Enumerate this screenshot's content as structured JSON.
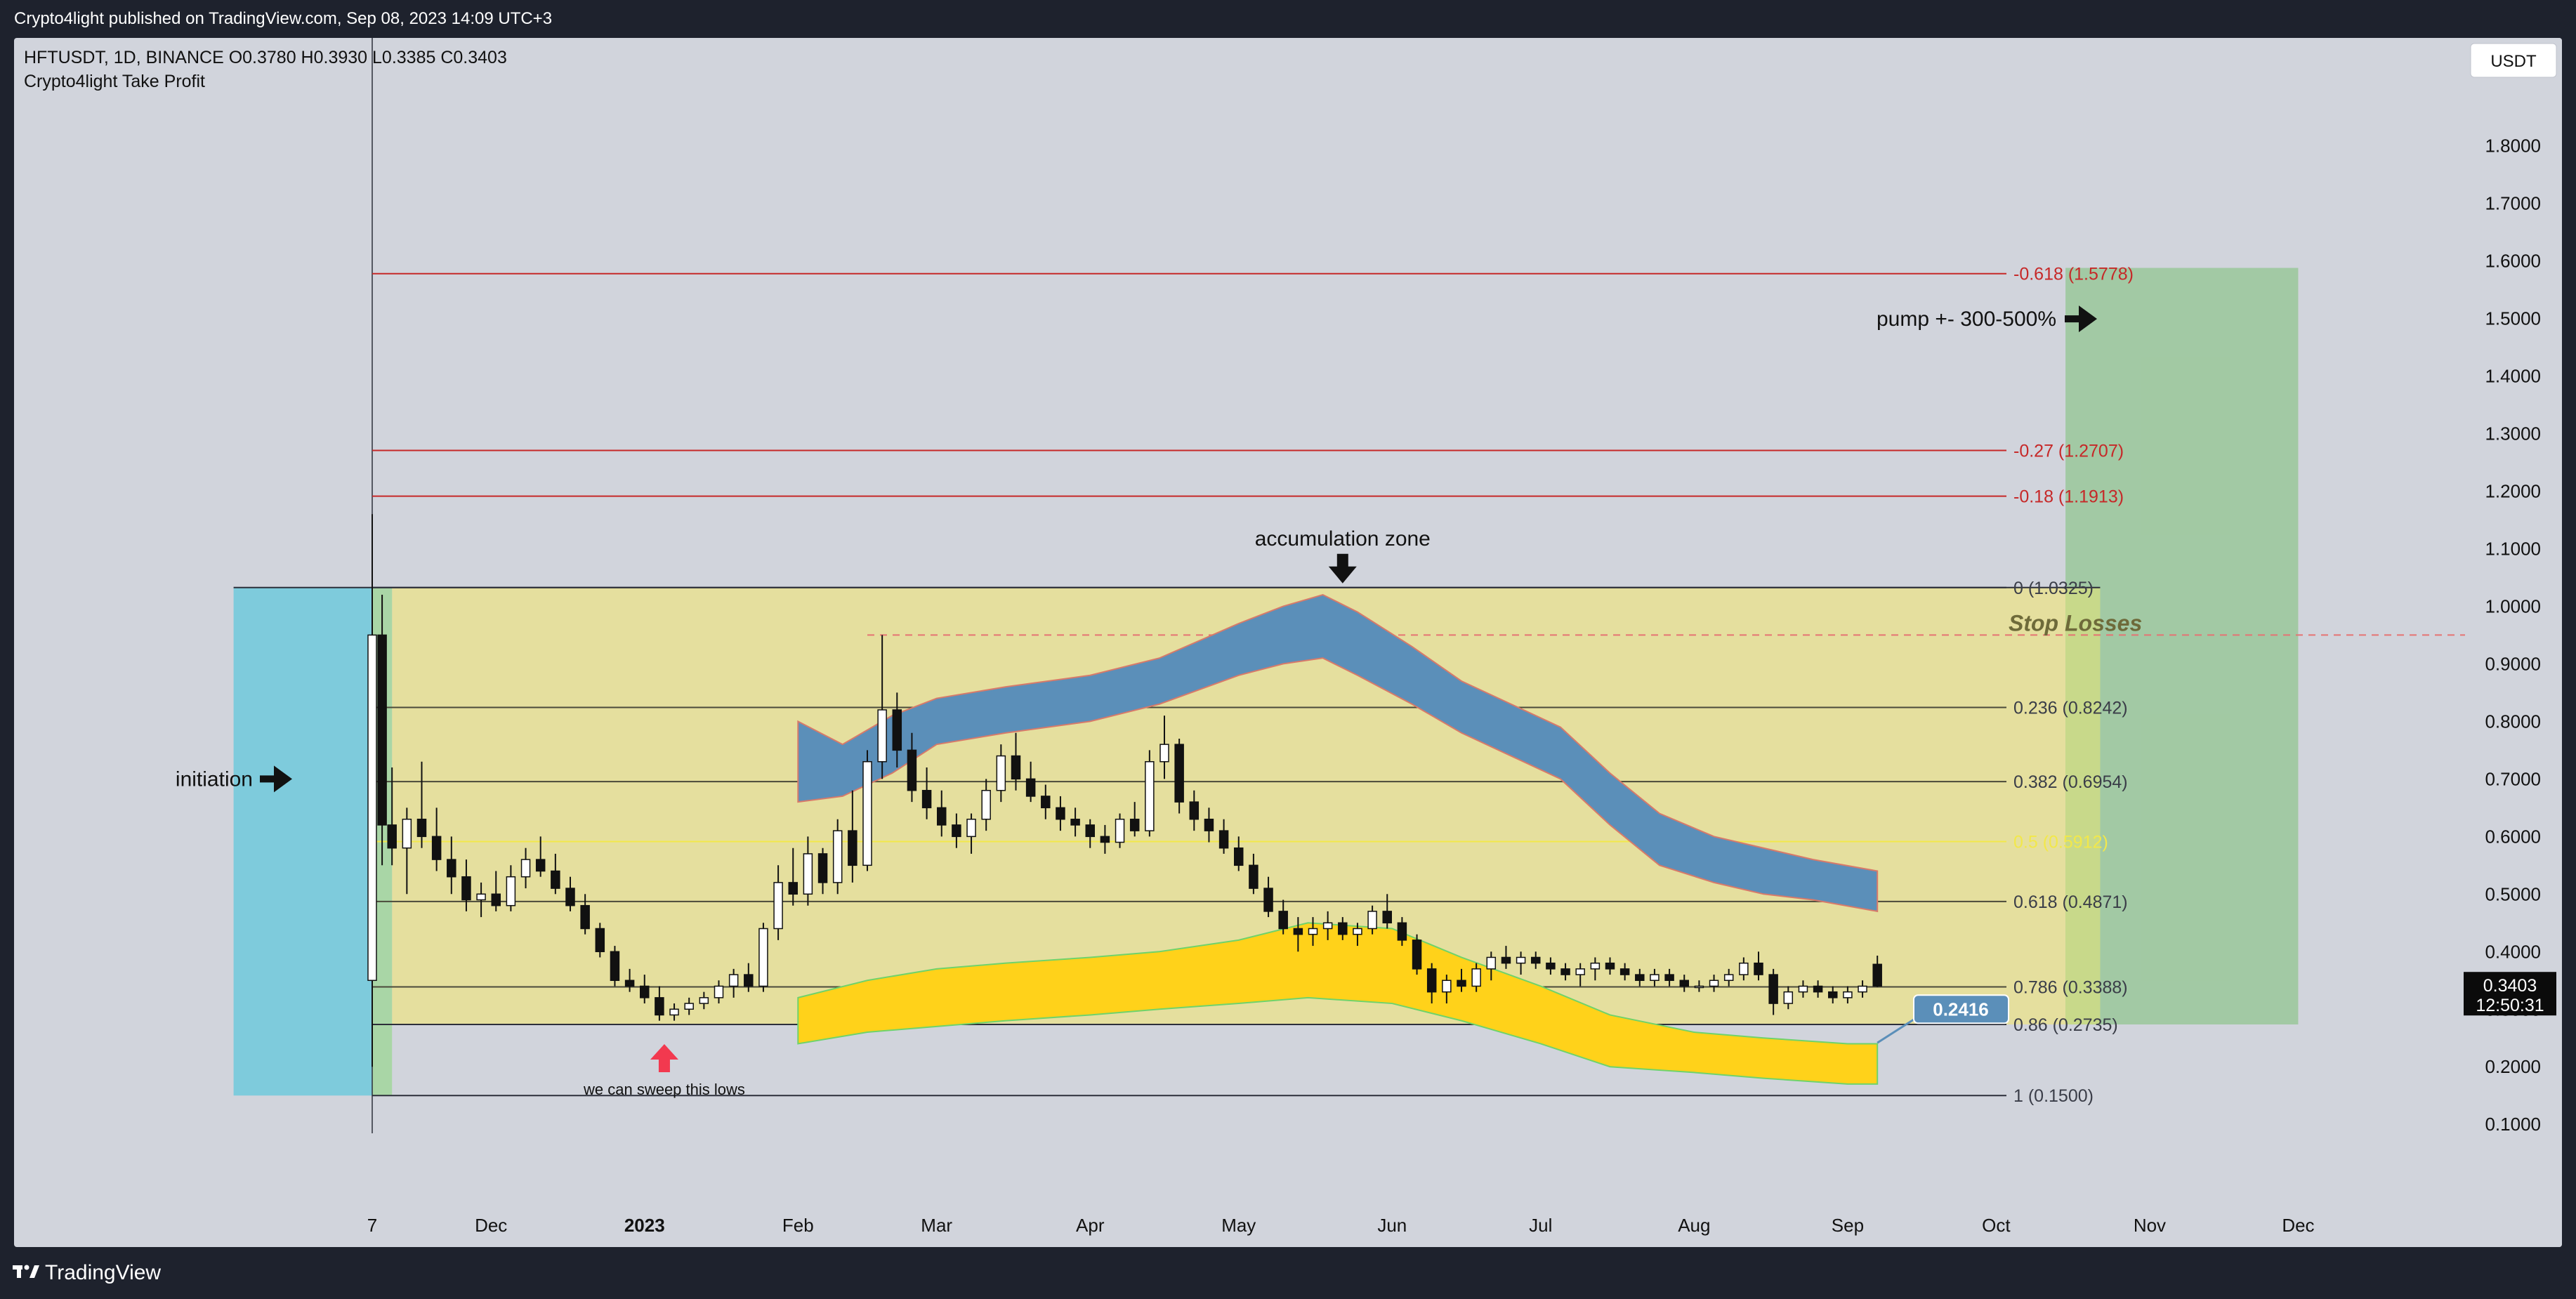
{
  "header": {
    "publish_text": "Crypto4light published on TradingView.com, Sep 08, 2023 14:09 UTC+3"
  },
  "footer": {
    "brand": "TradingView"
  },
  "chart_data": {
    "type": "candlestick",
    "symbol_line": "HFTUSDT, 1D, BINANCE  O0.3780  H0.3930  L0.3385  C0.3403",
    "indicator_name": "Crypto4light Take Profit",
    "currency_label": "USDT",
    "ylim": [
      0.06,
      1.88
    ],
    "y_ticks": [
      "1.8000",
      "1.7000",
      "1.6000",
      "1.5000",
      "1.4000",
      "1.3000",
      "1.2000",
      "1.1000",
      "1.0000",
      "0.9000",
      "0.8000",
      "0.7000",
      "0.6000",
      "0.5000",
      "0.4000",
      "0.3000",
      "0.2000",
      "0.1000"
    ],
    "x_ticks": [
      {
        "label": "7",
        "date": "2022-11-07",
        "bold": false
      },
      {
        "label": "Dec",
        "date": "2022-12-01",
        "bold": false
      },
      {
        "label": "2023",
        "date": "2023-01-01",
        "bold": true
      },
      {
        "label": "Feb",
        "date": "2023-02-01",
        "bold": false
      },
      {
        "label": "Mar",
        "date": "2023-03-01",
        "bold": false
      },
      {
        "label": "Apr",
        "date": "2023-04-01",
        "bold": false
      },
      {
        "label": "May",
        "date": "2023-05-01",
        "bold": false
      },
      {
        "label": "Jun",
        "date": "2023-06-01",
        "bold": false
      },
      {
        "label": "Jul",
        "date": "2023-07-01",
        "bold": false
      },
      {
        "label": "Aug",
        "date": "2023-08-01",
        "bold": false
      },
      {
        "label": "Sep",
        "date": "2023-09-01",
        "bold": false
      },
      {
        "label": "Oct",
        "date": "2023-10-01",
        "bold": false
      },
      {
        "label": "Nov",
        "date": "2023-11-01",
        "bold": false
      },
      {
        "label": "Dec",
        "date": "2023-12-01",
        "bold": false
      }
    ],
    "last_price": "0.3403",
    "countdown": "12:50:31",
    "fib_levels": [
      {
        "label": "-0.618 (1.5778)",
        "price": 1.5778,
        "color": "#c62828",
        "start": "2022-11-07"
      },
      {
        "label": "-0.27 (1.2707)",
        "price": 1.2707,
        "color": "#c62828",
        "start": "2022-11-07"
      },
      {
        "label": "-0.18 (1.1913)",
        "price": 1.1913,
        "color": "#c62828",
        "start": "2022-11-07"
      },
      {
        "label": "0 (1.0325)",
        "price": 1.0325,
        "color": "#2c2f3a",
        "start": "2022-11-07"
      },
      {
        "label": "0.236 (0.8242)",
        "price": 0.8242,
        "color": "#4a4a3a",
        "start": "2022-11-07"
      },
      {
        "label": "0.382 (0.6954)",
        "price": 0.6954,
        "color": "#4a4a3a",
        "start": "2022-11-07"
      },
      {
        "label": "0.5 (0.5912)",
        "price": 0.5912,
        "color": "#f2e84a",
        "start": "2022-11-07"
      },
      {
        "label": "0.618 (0.4871)",
        "price": 0.4871,
        "color": "#4a4a3a",
        "start": "2022-11-07"
      },
      {
        "label": "0.786 (0.3388)",
        "price": 0.3388,
        "color": "#4a4a3a",
        "start": "2022-11-07"
      },
      {
        "label": "0.86 (0.2735)",
        "price": 0.2735,
        "color": "#2c2f3a",
        "start": "2022-11-07"
      },
      {
        "label": "1 (0.1500)",
        "price": 0.15,
        "color": "#2c2f3a",
        "start": "2022-11-07"
      }
    ],
    "annotations": {
      "initiation": "initiation",
      "accumulation_zone": "accumulation zone",
      "sweep_lows": "we can sweep this lows",
      "pump": "pump +- 300-500%",
      "stop_losses": "Stop Losses",
      "target_badge": "0.2416"
    },
    "stop_loss_price": 0.95,
    "target_price": 0.2416,
    "candles": [
      [
        "2022-11-07",
        0.35,
        1.16,
        0.2,
        0.95
      ],
      [
        "2022-11-09",
        0.95,
        1.02,
        0.55,
        0.62
      ],
      [
        "2022-11-11",
        0.62,
        0.72,
        0.55,
        0.58
      ],
      [
        "2022-11-14",
        0.58,
        0.65,
        0.5,
        0.63
      ],
      [
        "2022-11-17",
        0.63,
        0.73,
        0.58,
        0.6
      ],
      [
        "2022-11-20",
        0.6,
        0.65,
        0.54,
        0.56
      ],
      [
        "2022-11-23",
        0.56,
        0.6,
        0.5,
        0.53
      ],
      [
        "2022-11-26",
        0.53,
        0.56,
        0.47,
        0.49
      ],
      [
        "2022-11-29",
        0.49,
        0.52,
        0.46,
        0.5
      ],
      [
        "2022-12-02",
        0.5,
        0.54,
        0.47,
        0.48
      ],
      [
        "2022-12-05",
        0.48,
        0.55,
        0.47,
        0.53
      ],
      [
        "2022-12-08",
        0.53,
        0.58,
        0.51,
        0.56
      ],
      [
        "2022-12-11",
        0.56,
        0.6,
        0.53,
        0.54
      ],
      [
        "2022-12-14",
        0.54,
        0.57,
        0.5,
        0.51
      ],
      [
        "2022-12-17",
        0.51,
        0.53,
        0.47,
        0.48
      ],
      [
        "2022-12-20",
        0.48,
        0.5,
        0.43,
        0.44
      ],
      [
        "2022-12-23",
        0.44,
        0.45,
        0.39,
        0.4
      ],
      [
        "2022-12-26",
        0.4,
        0.41,
        0.34,
        0.35
      ],
      [
        "2022-12-29",
        0.35,
        0.37,
        0.33,
        0.34
      ],
      [
        "2023-01-01",
        0.34,
        0.36,
        0.31,
        0.32
      ],
      [
        "2023-01-04",
        0.32,
        0.34,
        0.28,
        0.29
      ],
      [
        "2023-01-07",
        0.29,
        0.31,
        0.28,
        0.3
      ],
      [
        "2023-01-10",
        0.3,
        0.32,
        0.29,
        0.31
      ],
      [
        "2023-01-13",
        0.31,
        0.33,
        0.3,
        0.32
      ],
      [
        "2023-01-16",
        0.32,
        0.35,
        0.31,
        0.34
      ],
      [
        "2023-01-19",
        0.34,
        0.37,
        0.32,
        0.36
      ],
      [
        "2023-01-22",
        0.36,
        0.38,
        0.33,
        0.34
      ],
      [
        "2023-01-25",
        0.34,
        0.45,
        0.33,
        0.44
      ],
      [
        "2023-01-28",
        0.44,
        0.55,
        0.42,
        0.52
      ],
      [
        "2023-01-31",
        0.52,
        0.58,
        0.48,
        0.5
      ],
      [
        "2023-02-03",
        0.5,
        0.6,
        0.48,
        0.57
      ],
      [
        "2023-02-06",
        0.57,
        0.58,
        0.5,
        0.52
      ],
      [
        "2023-02-09",
        0.52,
        0.63,
        0.5,
        0.61
      ],
      [
        "2023-02-12",
        0.61,
        0.68,
        0.52,
        0.55
      ],
      [
        "2023-02-15",
        0.55,
        0.75,
        0.54,
        0.73
      ],
      [
        "2023-02-18",
        0.73,
        0.95,
        0.7,
        0.82
      ],
      [
        "2023-02-21",
        0.82,
        0.85,
        0.72,
        0.75
      ],
      [
        "2023-02-24",
        0.75,
        0.78,
        0.66,
        0.68
      ],
      [
        "2023-02-27",
        0.68,
        0.72,
        0.63,
        0.65
      ],
      [
        "2023-03-02",
        0.65,
        0.68,
        0.6,
        0.62
      ],
      [
        "2023-03-05",
        0.62,
        0.64,
        0.58,
        0.6
      ],
      [
        "2023-03-08",
        0.6,
        0.64,
        0.57,
        0.63
      ],
      [
        "2023-03-11",
        0.63,
        0.7,
        0.61,
        0.68
      ],
      [
        "2023-03-14",
        0.68,
        0.76,
        0.66,
        0.74
      ],
      [
        "2023-03-17",
        0.74,
        0.78,
        0.68,
        0.7
      ],
      [
        "2023-03-20",
        0.7,
        0.73,
        0.66,
        0.67
      ],
      [
        "2023-03-23",
        0.67,
        0.69,
        0.63,
        0.65
      ],
      [
        "2023-03-26",
        0.65,
        0.67,
        0.61,
        0.63
      ],
      [
        "2023-03-29",
        0.63,
        0.65,
        0.6,
        0.62
      ],
      [
        "2023-04-01",
        0.62,
        0.63,
        0.58,
        0.6
      ],
      [
        "2023-04-04",
        0.6,
        0.62,
        0.57,
        0.59
      ],
      [
        "2023-04-07",
        0.59,
        0.64,
        0.58,
        0.63
      ],
      [
        "2023-04-10",
        0.63,
        0.66,
        0.6,
        0.61
      ],
      [
        "2023-04-13",
        0.61,
        0.75,
        0.6,
        0.73
      ],
      [
        "2023-04-16",
        0.73,
        0.81,
        0.7,
        0.76
      ],
      [
        "2023-04-19",
        0.76,
        0.77,
        0.64,
        0.66
      ],
      [
        "2023-04-22",
        0.66,
        0.68,
        0.61,
        0.63
      ],
      [
        "2023-04-25",
        0.63,
        0.65,
        0.59,
        0.61
      ],
      [
        "2023-04-28",
        0.61,
        0.63,
        0.57,
        0.58
      ],
      [
        "2023-05-01",
        0.58,
        0.6,
        0.54,
        0.55
      ],
      [
        "2023-05-04",
        0.55,
        0.57,
        0.5,
        0.51
      ],
      [
        "2023-05-07",
        0.51,
        0.53,
        0.46,
        0.47
      ],
      [
        "2023-05-10",
        0.47,
        0.49,
        0.43,
        0.44
      ],
      [
        "2023-05-13",
        0.44,
        0.46,
        0.4,
        0.43
      ],
      [
        "2023-05-16",
        0.43,
        0.46,
        0.41,
        0.44
      ],
      [
        "2023-05-19",
        0.44,
        0.47,
        0.42,
        0.45
      ],
      [
        "2023-05-22",
        0.45,
        0.46,
        0.42,
        0.43
      ],
      [
        "2023-05-25",
        0.43,
        0.45,
        0.41,
        0.44
      ],
      [
        "2023-05-28",
        0.44,
        0.48,
        0.43,
        0.47
      ],
      [
        "2023-05-31",
        0.47,
        0.5,
        0.44,
        0.45
      ],
      [
        "2023-06-03",
        0.45,
        0.46,
        0.41,
        0.42
      ],
      [
        "2023-06-06",
        0.42,
        0.43,
        0.36,
        0.37
      ],
      [
        "2023-06-09",
        0.37,
        0.38,
        0.31,
        0.33
      ],
      [
        "2023-06-12",
        0.33,
        0.36,
        0.31,
        0.35
      ],
      [
        "2023-06-15",
        0.35,
        0.37,
        0.33,
        0.34
      ],
      [
        "2023-06-18",
        0.34,
        0.38,
        0.33,
        0.37
      ],
      [
        "2023-06-21",
        0.37,
        0.4,
        0.35,
        0.39
      ],
      [
        "2023-06-24",
        0.39,
        0.41,
        0.37,
        0.38
      ],
      [
        "2023-06-27",
        0.38,
        0.4,
        0.36,
        0.39
      ],
      [
        "2023-06-30",
        0.39,
        0.4,
        0.37,
        0.38
      ],
      [
        "2023-07-03",
        0.38,
        0.39,
        0.36,
        0.37
      ],
      [
        "2023-07-06",
        0.37,
        0.38,
        0.35,
        0.36
      ],
      [
        "2023-07-09",
        0.36,
        0.38,
        0.34,
        0.37
      ],
      [
        "2023-07-12",
        0.37,
        0.39,
        0.35,
        0.38
      ],
      [
        "2023-07-15",
        0.38,
        0.39,
        0.36,
        0.37
      ],
      [
        "2023-07-18",
        0.37,
        0.38,
        0.35,
        0.36
      ],
      [
        "2023-07-21",
        0.36,
        0.37,
        0.34,
        0.35
      ],
      [
        "2023-07-24",
        0.35,
        0.37,
        0.34,
        0.36
      ],
      [
        "2023-07-27",
        0.36,
        0.37,
        0.34,
        0.35
      ],
      [
        "2023-07-30",
        0.35,
        0.36,
        0.33,
        0.34
      ],
      [
        "2023-08-02",
        0.34,
        0.35,
        0.33,
        0.34
      ],
      [
        "2023-08-05",
        0.34,
        0.36,
        0.33,
        0.35
      ],
      [
        "2023-08-08",
        0.35,
        0.37,
        0.34,
        0.36
      ],
      [
        "2023-08-11",
        0.36,
        0.39,
        0.35,
        0.38
      ],
      [
        "2023-08-14",
        0.38,
        0.4,
        0.35,
        0.36
      ],
      [
        "2023-08-17",
        0.36,
        0.37,
        0.29,
        0.31
      ],
      [
        "2023-08-20",
        0.31,
        0.34,
        0.3,
        0.33
      ],
      [
        "2023-08-23",
        0.33,
        0.35,
        0.32,
        0.34
      ],
      [
        "2023-08-26",
        0.34,
        0.35,
        0.32,
        0.33
      ],
      [
        "2023-08-29",
        0.33,
        0.34,
        0.31,
        0.32
      ],
      [
        "2023-09-01",
        0.32,
        0.34,
        0.31,
        0.33
      ],
      [
        "2023-09-04",
        0.33,
        0.35,
        0.32,
        0.34
      ],
      [
        "2023-09-07",
        0.378,
        0.393,
        0.3385,
        0.3403
      ]
    ],
    "blue_cloud": {
      "dates": [
        "2023-02-01",
        "2023-02-10",
        "2023-02-20",
        "2023-03-01",
        "2023-03-15",
        "2023-04-01",
        "2023-04-15",
        "2023-05-01",
        "2023-05-10",
        "2023-05-18",
        "2023-05-25",
        "2023-06-05",
        "2023-06-15",
        "2023-06-25",
        "2023-07-05",
        "2023-07-15",
        "2023-07-25",
        "2023-08-05",
        "2023-08-15",
        "2023-08-25",
        "2023-09-07"
      ],
      "upper": [
        0.8,
        0.76,
        0.81,
        0.84,
        0.86,
        0.88,
        0.91,
        0.97,
        1.0,
        1.02,
        0.99,
        0.93,
        0.87,
        0.83,
        0.79,
        0.71,
        0.64,
        0.6,
        0.58,
        0.56,
        0.54
      ],
      "lower": [
        0.66,
        0.67,
        0.71,
        0.76,
        0.78,
        0.8,
        0.83,
        0.88,
        0.9,
        0.91,
        0.88,
        0.83,
        0.78,
        0.74,
        0.7,
        0.62,
        0.55,
        0.52,
        0.5,
        0.49,
        0.47
      ]
    },
    "yellow_cloud": {
      "dates": [
        "2023-02-01",
        "2023-02-15",
        "2023-03-01",
        "2023-03-15",
        "2023-04-01",
        "2023-04-15",
        "2023-05-01",
        "2023-05-15",
        "2023-06-01",
        "2023-06-15",
        "2023-07-01",
        "2023-07-15",
        "2023-08-01",
        "2023-08-15",
        "2023-09-01",
        "2023-09-07"
      ],
      "upper": [
        0.32,
        0.35,
        0.37,
        0.38,
        0.39,
        0.4,
        0.42,
        0.45,
        0.44,
        0.39,
        0.34,
        0.29,
        0.26,
        0.25,
        0.24,
        0.24
      ],
      "lower": [
        0.24,
        0.26,
        0.27,
        0.28,
        0.29,
        0.3,
        0.31,
        0.32,
        0.31,
        0.28,
        0.24,
        0.2,
        0.19,
        0.18,
        0.17,
        0.17
      ]
    },
    "zones": {
      "initiation_box": {
        "start": "2022-10-10",
        "end": "2022-11-07",
        "top": 1.0325,
        "bottom": 0.15,
        "color": "#7ecbdc"
      },
      "initiation_strip": {
        "start": "2022-11-07",
        "end": "2022-11-11",
        "top": 1.0325,
        "bottom": 0.15,
        "color": "#a9d6a6"
      },
      "accumulation_box": {
        "start": "2022-11-11",
        "end": "2023-10-22",
        "top": 1.0325,
        "bottom": 0.2735,
        "color": "#e5df9e"
      },
      "accumulation_strip": {
        "start": "2023-10-15",
        "end": "2023-10-22",
        "top": 1.0325,
        "bottom": 0.2735,
        "color": "#c8d98a"
      },
      "target_box": {
        "start": "2023-10-15",
        "end": "2023-12-01",
        "top": 1.5878,
        "bottom": 0.2735,
        "color": "#9fc8a0"
      }
    },
    "colors": {
      "candle_up": "#ffffff",
      "candle_down": "#111111",
      "blue_cloud": "#5b8fb9",
      "yellow_cloud": "#ffd21a",
      "badge": "#5b8fb9"
    }
  }
}
